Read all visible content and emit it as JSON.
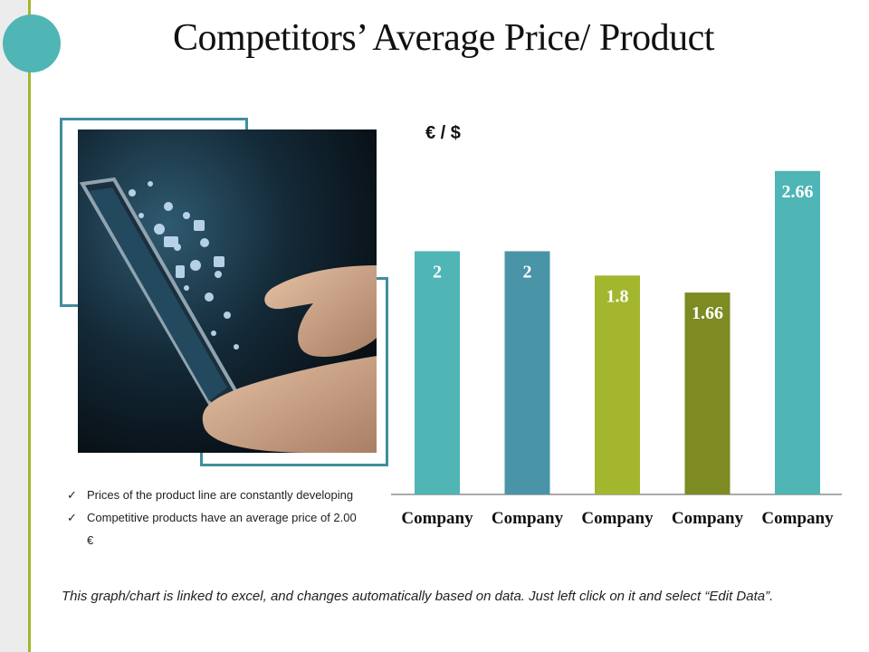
{
  "slide": {
    "title": "Competitors’ Average Price/ Product",
    "bullets": [
      "Prices of the product line are constantly developing",
      "Competitive products have an average price of 2.00 €"
    ],
    "bullet_mark": "✓",
    "footnote": "This graph/chart is linked to excel, and changes automatically based on data. Just left click on it and select “Edit Data”.",
    "image_subject": "hands-holding-tablet-with-app-icons",
    "colors": {
      "accent_teal": "#4fb5b5",
      "accent_green": "#a3b62e",
      "frame": "#3f8f9c"
    }
  },
  "chart_data": {
    "type": "bar",
    "ylabel": "€ / $",
    "categories": [
      "Company",
      "Company",
      "Company",
      "Company",
      "Company"
    ],
    "values": [
      2,
      2,
      1.8,
      1.66,
      2.66
    ],
    "value_labels": [
      "2",
      "2",
      "1.8",
      "1.66",
      "2.66"
    ],
    "bar_colors": [
      "#4fb5b5",
      "#4a94a8",
      "#a3b62e",
      "#7d8b22",
      "#4fb5b5"
    ],
    "ylim": [
      0,
      2.8
    ],
    "grid": false,
    "legend": false
  }
}
